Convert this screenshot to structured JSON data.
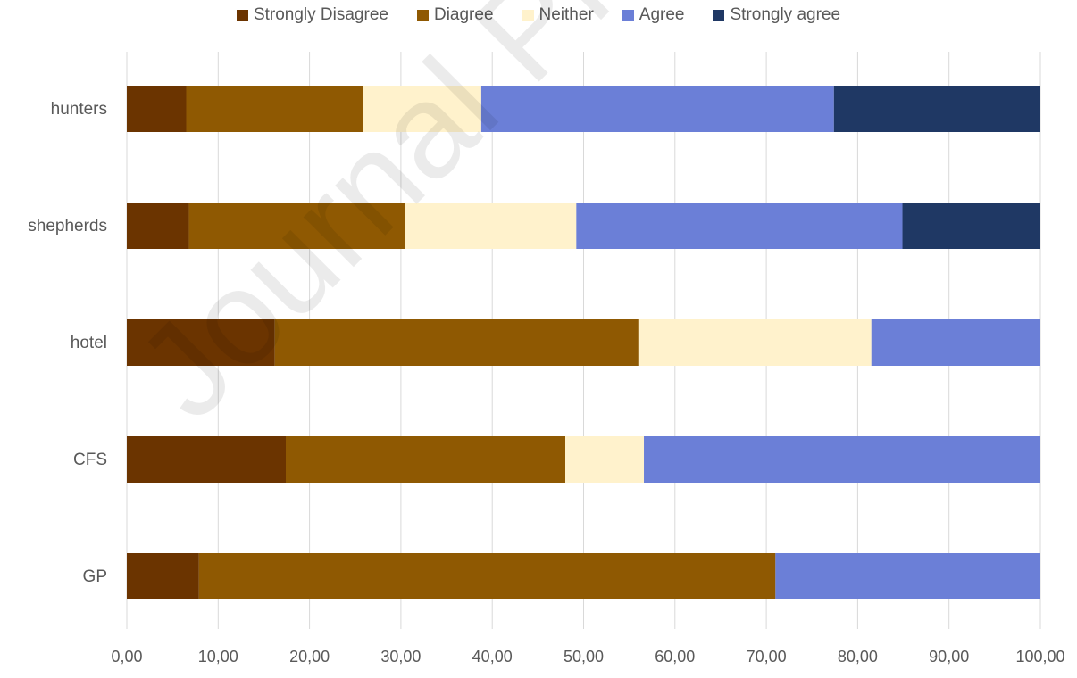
{
  "chart_data": {
    "type": "bar",
    "orientation": "horizontal",
    "stacked": true,
    "categories": [
      "hunters",
      "shepherds",
      "hotel",
      "CFS",
      "GP"
    ],
    "series": [
      {
        "name": "Strongly Disagree",
        "color": "#6b3400",
        "values": [
          6.5,
          6.8,
          16.2,
          17.4,
          7.9
        ]
      },
      {
        "name": "Diagree",
        "color": "#8f5902",
        "values": [
          19.4,
          23.7,
          39.8,
          30.6,
          63.1
        ]
      },
      {
        "name": "Neither",
        "color": "#fff2cc",
        "values": [
          12.9,
          18.7,
          25.5,
          8.6,
          0
        ]
      },
      {
        "name": "Agree",
        "color": "#6b7fd7",
        "values": [
          38.6,
          35.7,
          18.5,
          43.4,
          29.0
        ]
      },
      {
        "name": "Strongly agree",
        "color": "#1f3864",
        "values": [
          22.6,
          15.1,
          0,
          0,
          0
        ]
      }
    ],
    "xlim": [
      0,
      100
    ],
    "xticks": [
      "0,00",
      "10,00",
      "20,00",
      "30,00",
      "40,00",
      "50,00",
      "60,00",
      "70,00",
      "80,00",
      "90,00",
      "100,00"
    ],
    "grid": "vertical",
    "legend": "top"
  },
  "watermark": "Journal Pre-proof"
}
